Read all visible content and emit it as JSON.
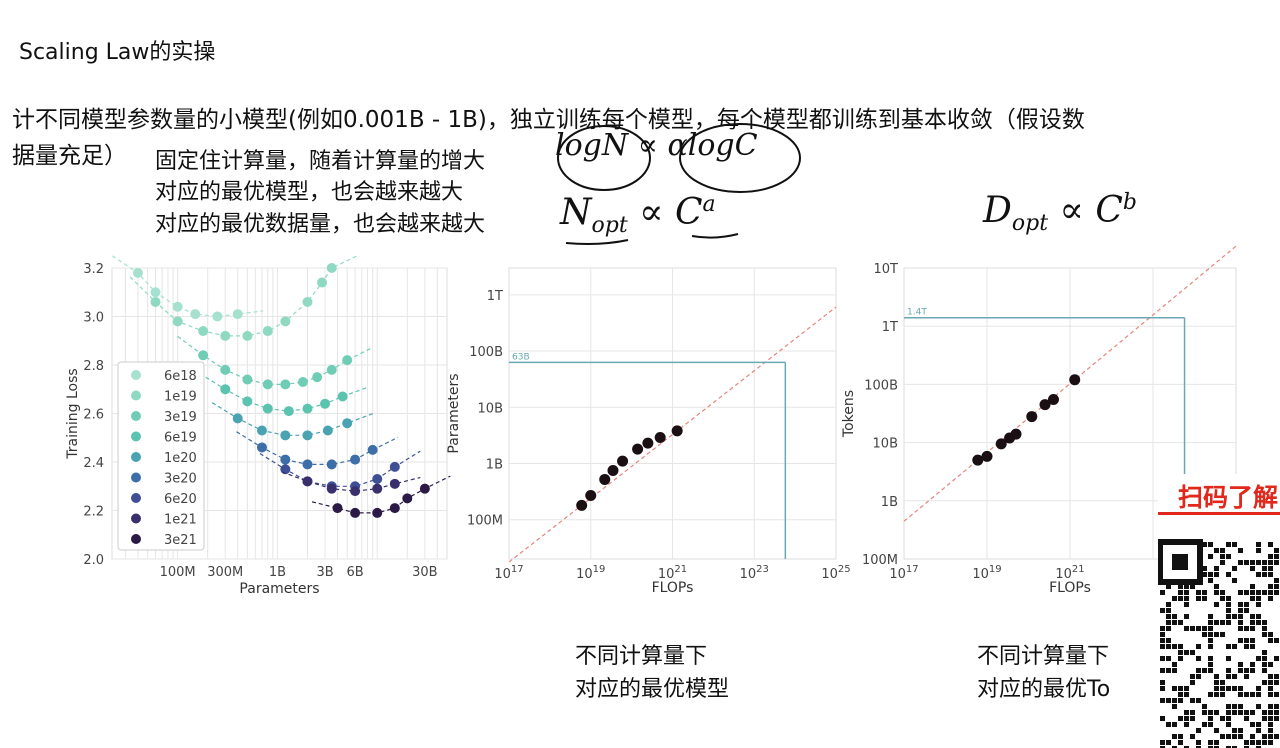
{
  "title": "Scaling Law的实操",
  "intro": {
    "line1": "计不同模型参数量的小模型(例如0.001B - 1B)，独立训练每个模型，每个模型都训练到基本收敛（假设数",
    "line2": "据量充足）"
  },
  "notes": [
    "固定住计算量，随着计算量的增大",
    "对应的最优模型，也会越来越大",
    "对应的最优数据量，也会越来越大"
  ],
  "formulas": {
    "params": {
      "symbol": "N",
      "sub": "opt",
      "prop": "∝",
      "base": "C",
      "exp": "a"
    },
    "tokens": {
      "symbol": "D",
      "sub": "opt",
      "prop": "∝",
      "base": "C",
      "exp": "b"
    },
    "handwritten": "logN ∝ αlogC"
  },
  "captions": {
    "params": [
      "不同计算量下",
      "对应的最优模型"
    ],
    "tokens": [
      "不同计算量下",
      "对应的最优To"
    ]
  },
  "qr_banner": "扫码了解",
  "colors": {
    "seafoam_light": "#8fd9c2",
    "seafoam": "#5cc3b0",
    "teal": "#3f9fae",
    "blue": "#3d6ea8",
    "indigo": "#3f3f86",
    "dark": "#2b1a45",
    "grid": "#e6e6e6",
    "fit_line": "#e8837a",
    "guide": "#6aa9b3",
    "qr_red": "#e0281c"
  },
  "chart_data": [
    {
      "type": "line",
      "xlabel": "Parameters",
      "ylabel": "Training Loss",
      "x_scale": "log",
      "ylim": [
        2.0,
        3.2
      ],
      "yticks": [
        "2.0",
        "2.2",
        "2.4",
        "2.6",
        "2.8",
        "3.0",
        "3.2"
      ],
      "xticks": [
        "100M",
        "300M",
        "1B",
        "3B",
        "6B",
        "30B"
      ],
      "grid": true,
      "legend_position": "middle-left",
      "series": [
        {
          "name": "6e18",
          "color": "#a6e1cf",
          "points": [
            [
              40000000,
              3.18
            ],
            [
              60000000,
              3.1
            ],
            [
              100000000,
              3.04
            ],
            [
              150000000,
              3.01
            ],
            [
              250000000,
              3.0
            ],
            [
              400000000,
              3.01
            ]
          ]
        },
        {
          "name": "1e19",
          "color": "#8fd9c2",
          "points": [
            [
              60000000,
              3.06
            ],
            [
              100000000,
              2.98
            ],
            [
              180000000,
              2.94
            ],
            [
              300000000,
              2.92
            ],
            [
              500000000,
              2.92
            ],
            [
              800000000,
              2.94
            ],
            [
              1200000000,
              2.98
            ],
            [
              2000000000,
              3.06
            ],
            [
              2800000000,
              3.14
            ],
            [
              3500000000,
              3.2
            ]
          ]
        },
        {
          "name": "3e19",
          "color": "#6fcdb5",
          "points": [
            [
              180000000,
              2.84
            ],
            [
              300000000,
              2.78
            ],
            [
              500000000,
              2.74
            ],
            [
              800000000,
              2.72
            ],
            [
              1200000000,
              2.72
            ],
            [
              1800000000,
              2.73
            ],
            [
              2500000000,
              2.75
            ],
            [
              3500000000,
              2.78
            ],
            [
              5000000000,
              2.82
            ]
          ]
        },
        {
          "name": "6e19",
          "color": "#5cc3b0",
          "points": [
            [
              300000000,
              2.7
            ],
            [
              500000000,
              2.65
            ],
            [
              800000000,
              2.62
            ],
            [
              1300000000,
              2.61
            ],
            [
              2000000000,
              2.62
            ],
            [
              3000000000,
              2.64
            ],
            [
              4500000000,
              2.67
            ]
          ]
        },
        {
          "name": "1e20",
          "color": "#4aa3b0",
          "points": [
            [
              400000000,
              2.58
            ],
            [
              700000000,
              2.53
            ],
            [
              1200000000,
              2.51
            ],
            [
              2000000000,
              2.51
            ],
            [
              3200000000,
              2.53
            ],
            [
              5000000000,
              2.56
            ]
          ]
        },
        {
          "name": "3e20",
          "color": "#3d6ea8",
          "points": [
            [
              700000000,
              2.46
            ],
            [
              1200000000,
              2.41
            ],
            [
              2000000000,
              2.39
            ],
            [
              3500000000,
              2.39
            ],
            [
              6000000000,
              2.41
            ],
            [
              9000000000,
              2.45
            ]
          ]
        },
        {
          "name": "6e20",
          "color": "#3f4f96",
          "points": [
            [
              1200000000,
              2.37
            ],
            [
              2000000000,
              2.32
            ],
            [
              3500000000,
              2.3
            ],
            [
              6000000000,
              2.3
            ],
            [
              10000000000,
              2.33
            ],
            [
              15000000000,
              2.38
            ]
          ]
        },
        {
          "name": "1e21",
          "color": "#3a2f6d",
          "points": [
            [
              2000000000,
              2.32
            ],
            [
              3500000000,
              2.29
            ],
            [
              6000000000,
              2.28
            ],
            [
              10000000000,
              2.29
            ],
            [
              15000000000,
              2.31
            ]
          ]
        },
        {
          "name": "3e21",
          "color": "#2b1a45",
          "points": [
            [
              4000000000,
              2.21
            ],
            [
              6000000000,
              2.19
            ],
            [
              10000000000,
              2.19
            ],
            [
              15000000000,
              2.21
            ],
            [
              20000000000,
              2.25
            ],
            [
              30000000000,
              2.29
            ]
          ]
        }
      ]
    },
    {
      "type": "scatter",
      "xlabel": "FLOPs",
      "ylabel": "Parameters",
      "x_scale": "log",
      "y_scale": "log",
      "xlim": [
        1e+17,
        1e+25
      ],
      "ylim": [
        20000000,
        3000000000000
      ],
      "yticks": [
        "100M",
        "1B",
        "10B",
        "100B",
        "1T"
      ],
      "xticks": [
        "10^17",
        "10^19",
        "10^21",
        "10^23",
        "10^25"
      ],
      "grid": true,
      "guide": {
        "label": "63B",
        "x": 5.76e+23,
        "y": 63000000000
      },
      "points": [
        [
          6e+18,
          180000000
        ],
        [
          1e+19,
          270000000
        ],
        [
          2.2e+19,
          520000000
        ],
        [
          3.5e+19,
          750000000
        ],
        [
          6e+19,
          1100000000
        ],
        [
          1.4e+20,
          1800000000
        ],
        [
          2.5e+20,
          2300000000
        ],
        [
          5e+20,
          2900000000
        ],
        [
          1.3e+21,
          3800000000
        ]
      ]
    },
    {
      "type": "scatter",
      "xlabel": "FLOPs",
      "ylabel": "Tokens",
      "x_scale": "log",
      "y_scale": "log",
      "xlim": [
        1e+17,
        1e+25
      ],
      "ylim": [
        100000000,
        10000000000000
      ],
      "yticks": [
        "100M",
        "1B",
        "10B",
        "100B",
        "1T",
        "10T"
      ],
      "xticks": [
        "10^17",
        "10^19",
        "10^21"
      ],
      "grid": true,
      "guide": {
        "label": "1.4T",
        "x": 5.76e+23,
        "y": 1400000000000
      },
      "points": [
        [
          6e+18,
          5000000000
        ],
        [
          1e+19,
          5800000000
        ],
        [
          2.2e+19,
          9500000000
        ],
        [
          3.5e+19,
          12000000000
        ],
        [
          5e+19,
          14000000000
        ],
        [
          1.2e+20,
          28000000000
        ],
        [
          2.5e+20,
          45000000000
        ],
        [
          4e+20,
          55000000000
        ],
        [
          1.3e+21,
          120000000000
        ]
      ]
    }
  ]
}
